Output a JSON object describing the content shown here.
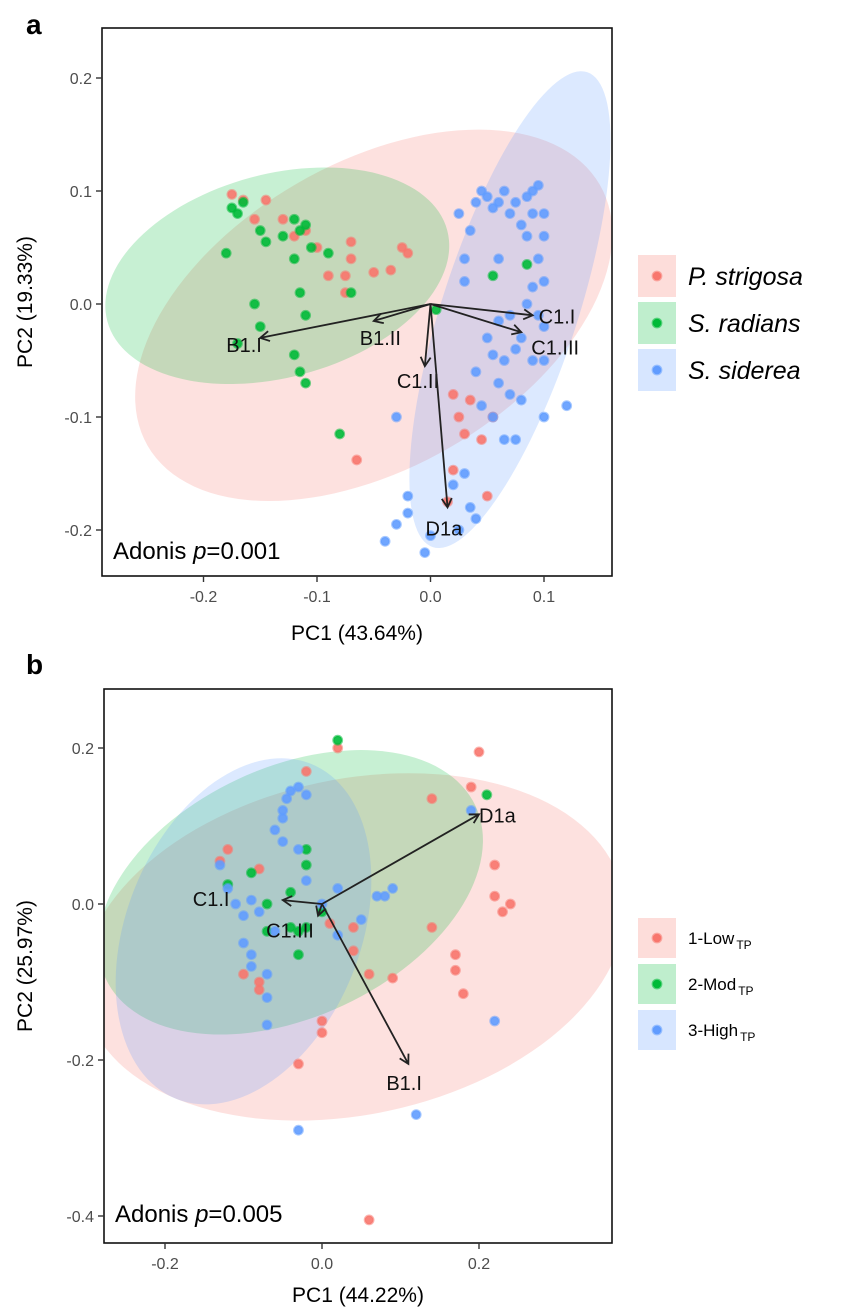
{
  "chart_data": [
    {
      "panel": "a",
      "type": "scatter",
      "xlabel": "PC1 (43.64%)",
      "ylabel": "PC2 (19.33%)",
      "xlim": [
        -0.29,
        0.16
      ],
      "ylim": [
        -0.24,
        0.23
      ],
      "xticks": [
        -0.2,
        -0.1,
        0.0,
        0.1
      ],
      "xtick_labels": [
        "-0.2",
        "-0.1",
        "0.0",
        "0.1"
      ],
      "yticks": [
        -0.2,
        -0.1,
        0.0,
        0.1,
        0.2
      ],
      "ytick_labels": [
        "-0.2",
        "-0.1",
        "0.0",
        "0.1",
        "0.2"
      ],
      "grid": false,
      "legend_position": "right",
      "annotation": {
        "prefix": "Adonis ",
        "italic": "p",
        "suffix": "=0.001"
      },
      "series": [
        {
          "name": "P. strigosa",
          "color": "#F8766D",
          "ellipse": {
            "cx": -0.05,
            "cy": -0.01,
            "rx": 0.23,
            "ry": 0.135,
            "angle": -30
          },
          "x": [
            -0.175,
            -0.165,
            -0.155,
            -0.145,
            -0.13,
            -0.11,
            -0.1,
            -0.07,
            -0.07,
            -0.05,
            -0.035,
            -0.025,
            -0.02,
            0.02,
            0.025,
            0.03,
            0.035,
            0.045,
            0.055,
            0.05,
            -0.065,
            0.02,
            -0.065
          ],
          "y": [
            0.097,
            0.092,
            0.075,
            0.092,
            0.075,
            0.065,
            0.05,
            0.055,
            0.04,
            0.028,
            0.03,
            0.05,
            0.045,
            -0.08,
            -0.1,
            -0.115,
            -0.085,
            -0.12,
            -0.1,
            -0.17,
            0.025,
            -0.147,
            -0.138
          ],
          "point_marks": [
            [
              -0.175,
              0.097
            ],
            [
              -0.165,
              0.092
            ],
            [
              -0.155,
              0.075
            ],
            [
              -0.145,
              0.092
            ],
            [
              -0.13,
              0.075
            ],
            [
              -0.11,
              0.065
            ],
            [
              -0.1,
              0.05
            ],
            [
              -0.07,
              0.055
            ],
            [
              -0.07,
              0.04
            ],
            [
              -0.05,
              0.028
            ],
            [
              -0.035,
              0.03
            ],
            [
              -0.025,
              0.05
            ],
            [
              -0.02,
              0.045
            ],
            [
              -0.09,
              0.025
            ],
            [
              -0.075,
              0.025
            ],
            [
              0.02,
              -0.08
            ],
            [
              0.025,
              -0.1
            ],
            [
              0.03,
              -0.115
            ],
            [
              0.035,
              -0.085
            ],
            [
              0.045,
              -0.12
            ],
            [
              0.055,
              -0.1
            ],
            [
              0.05,
              -0.17
            ],
            [
              0.02,
              -0.147
            ],
            [
              -0.065,
              -0.138
            ],
            [
              0.015,
              -0.175
            ],
            [
              -0.075,
              0.01
            ],
            [
              -0.12,
              0.06
            ]
          ]
        },
        {
          "name": "S. radians",
          "color": "#00BA38",
          "ellipse": {
            "cx": -0.135,
            "cy": 0.025,
            "rx": 0.155,
            "ry": 0.09,
            "angle": -15
          },
          "point_marks": [
            [
              -0.18,
              0.045
            ],
            [
              -0.175,
              0.085
            ],
            [
              -0.17,
              0.08
            ],
            [
              -0.165,
              0.09
            ],
            [
              -0.15,
              0.065
            ],
            [
              -0.145,
              0.055
            ],
            [
              -0.13,
              0.06
            ],
            [
              -0.12,
              0.075
            ],
            [
              -0.115,
              0.065
            ],
            [
              -0.11,
              0.07
            ],
            [
              -0.105,
              0.05
            ],
            [
              -0.09,
              0.045
            ],
            [
              -0.12,
              0.04
            ],
            [
              -0.115,
              0.01
            ],
            [
              -0.11,
              -0.01
            ],
            [
              -0.15,
              -0.02
            ],
            [
              -0.155,
              0.0
            ],
            [
              -0.12,
              -0.045
            ],
            [
              -0.115,
              -0.06
            ],
            [
              -0.11,
              -0.07
            ],
            [
              -0.17,
              -0.035
            ],
            [
              -0.08,
              -0.115
            ],
            [
              -0.07,
              0.01
            ],
            [
              0.005,
              -0.005
            ],
            [
              0.055,
              0.025
            ],
            [
              0.085,
              0.035
            ]
          ]
        },
        {
          "name": "S. siderea",
          "color": "#619CFF",
          "ellipse": {
            "cx": 0.07,
            "cy": -0.005,
            "rx": 0.22,
            "ry": 0.06,
            "angle": -72
          },
          "point_marks": [
            [
              0.025,
              0.08
            ],
            [
              0.03,
              0.04
            ],
            [
              0.04,
              0.09
            ],
            [
              0.045,
              0.1
            ],
            [
              0.05,
              0.095
            ],
            [
              0.055,
              0.085
            ],
            [
              0.06,
              0.09
            ],
            [
              0.065,
              0.1
            ],
            [
              0.07,
              0.08
            ],
            [
              0.075,
              0.09
            ],
            [
              0.08,
              0.07
            ],
            [
              0.085,
              0.095
            ],
            [
              0.09,
              0.1
            ],
            [
              0.095,
              0.105
            ],
            [
              0.1,
              0.08
            ],
            [
              0.09,
              0.08
            ],
            [
              0.085,
              0.06
            ],
            [
              0.1,
              0.06
            ],
            [
              0.095,
              0.04
            ],
            [
              0.1,
              0.02
            ],
            [
              0.09,
              0.015
            ],
            [
              0.085,
              0.0
            ],
            [
              0.095,
              -0.01
            ],
            [
              0.1,
              -0.02
            ],
            [
              0.07,
              -0.01
            ],
            [
              0.06,
              -0.015
            ],
            [
              0.05,
              -0.03
            ],
            [
              0.055,
              -0.045
            ],
            [
              0.065,
              -0.05
            ],
            [
              0.075,
              -0.04
            ],
            [
              0.08,
              -0.03
            ],
            [
              0.09,
              -0.05
            ],
            [
              0.1,
              -0.05
            ],
            [
              0.06,
              -0.07
            ],
            [
              0.07,
              -0.08
            ],
            [
              0.08,
              -0.085
            ],
            [
              0.04,
              -0.06
            ],
            [
              0.045,
              -0.09
            ],
            [
              0.055,
              -0.1
            ],
            [
              0.065,
              -0.12
            ],
            [
              0.075,
              -0.12
            ],
            [
              0.02,
              -0.16
            ],
            [
              0.03,
              -0.15
            ],
            [
              0.035,
              -0.18
            ],
            [
              0.04,
              -0.19
            ],
            [
              0.025,
              -0.2
            ],
            [
              -0.02,
              -0.17
            ],
            [
              -0.02,
              -0.185
            ],
            [
              -0.03,
              -0.195
            ],
            [
              0.0,
              -0.205
            ],
            [
              -0.04,
              -0.21
            ],
            [
              -0.005,
              -0.22
            ],
            [
              0.12,
              -0.09
            ],
            [
              0.1,
              -0.1
            ],
            [
              -0.03,
              -0.1
            ],
            [
              0.03,
              0.02
            ],
            [
              0.06,
              0.04
            ],
            [
              0.035,
              0.065
            ]
          ]
        }
      ],
      "loadings": [
        {
          "label": "B1.I",
          "x": -0.15,
          "y": -0.03
        },
        {
          "label": "B1.II",
          "x": -0.05,
          "y": -0.015
        },
        {
          "label": "C1.I",
          "x": 0.09,
          "y": -0.01
        },
        {
          "label": "C1.III",
          "x": 0.08,
          "y": -0.025
        },
        {
          "label": "C1.II",
          "x": -0.005,
          "y": -0.055
        },
        {
          "label": "D1a",
          "x": 0.015,
          "y": -0.18
        }
      ]
    },
    {
      "panel": "b",
      "type": "scatter",
      "xlabel": "PC1 (44.22%)",
      "ylabel": "PC2 (25.97%)",
      "xlim": [
        -0.28,
        0.37
      ],
      "ylim": [
        -0.43,
        0.27
      ],
      "xticks": [
        -0.2,
        0.0,
        0.2
      ],
      "xtick_labels": [
        "-0.2",
        "0.0",
        "0.2"
      ],
      "yticks": [
        -0.4,
        -0.2,
        0.0,
        0.2
      ],
      "ytick_labels": [
        "-0.4",
        "-0.2",
        "0.0",
        "0.2"
      ],
      "grid": false,
      "legend_position": "right",
      "annotation": {
        "prefix": "Adonis ",
        "italic": "p",
        "suffix": "=0.005"
      },
      "series": [
        {
          "name": "1-Low",
          "sub": "TP",
          "color": "#F8766D",
          "ellipse": {
            "cx": 0.04,
            "cy": -0.055,
            "rx": 0.35,
            "ry": 0.215,
            "angle": -12
          },
          "point_marks": [
            [
              -0.13,
              0.055
            ],
            [
              -0.12,
              0.07
            ],
            [
              -0.08,
              0.045
            ],
            [
              -0.1,
              -0.09
            ],
            [
              -0.08,
              -0.1
            ],
            [
              -0.08,
              -0.11
            ],
            [
              0.0,
              -0.15
            ],
            [
              0.0,
              -0.165
            ],
            [
              -0.03,
              -0.205
            ],
            [
              0.02,
              0.2
            ],
            [
              0.04,
              -0.06
            ],
            [
              0.06,
              -0.09
            ],
            [
              0.04,
              -0.03
            ],
            [
              0.09,
              -0.095
            ],
            [
              0.14,
              0.135
            ],
            [
              0.19,
              0.15
            ],
            [
              0.2,
              0.195
            ],
            [
              0.22,
              0.05
            ],
            [
              0.22,
              0.01
            ],
            [
              0.24,
              0.0
            ],
            [
              0.23,
              -0.01
            ],
            [
              0.17,
              -0.085
            ],
            [
              0.17,
              -0.065
            ],
            [
              0.18,
              -0.115
            ],
            [
              0.14,
              -0.03
            ],
            [
              0.06,
              -0.405
            ],
            [
              -0.02,
              0.17
            ],
            [
              0.01,
              -0.025
            ]
          ]
        },
        {
          "name": "2-Mod",
          "sub": "TP",
          "color": "#00BA38",
          "ellipse": {
            "cx": -0.04,
            "cy": 0.015,
            "rx": 0.26,
            "ry": 0.16,
            "angle": -25
          },
          "point_marks": [
            [
              -0.12,
              0.025
            ],
            [
              -0.09,
              0.04
            ],
            [
              -0.07,
              0.0
            ],
            [
              -0.07,
              -0.035
            ],
            [
              -0.04,
              -0.03
            ],
            [
              -0.03,
              -0.035
            ],
            [
              -0.02,
              0.05
            ],
            [
              -0.02,
              0.07
            ],
            [
              -0.04,
              0.015
            ],
            [
              -0.03,
              -0.065
            ],
            [
              -0.02,
              -0.03
            ],
            [
              0.02,
              0.21
            ],
            [
              0.21,
              0.14
            ],
            [
              0.0,
              -0.01
            ]
          ]
        },
        {
          "name": "3-High",
          "sub": "TP",
          "color": "#619CFF",
          "ellipse": {
            "cx": -0.1,
            "cy": -0.035,
            "rx": 0.23,
            "ry": 0.15,
            "angle": -68
          },
          "point_marks": [
            [
              -0.13,
              0.05
            ],
            [
              -0.12,
              0.02
            ],
            [
              -0.11,
              0.0
            ],
            [
              -0.1,
              -0.015
            ],
            [
              -0.09,
              0.005
            ],
            [
              -0.08,
              -0.01
            ],
            [
              -0.1,
              -0.05
            ],
            [
              -0.09,
              -0.065
            ],
            [
              -0.09,
              -0.08
            ],
            [
              -0.07,
              -0.09
            ],
            [
              -0.07,
              -0.12
            ],
            [
              -0.07,
              -0.155
            ],
            [
              -0.06,
              0.095
            ],
            [
              -0.05,
              0.12
            ],
            [
              -0.045,
              0.135
            ],
            [
              -0.04,
              0.145
            ],
            [
              -0.03,
              0.15
            ],
            [
              -0.02,
              0.14
            ],
            [
              -0.05,
              0.08
            ],
            [
              -0.03,
              0.07
            ],
            [
              -0.02,
              0.03
            ],
            [
              0.0,
              0.0
            ],
            [
              0.02,
              0.02
            ],
            [
              0.05,
              -0.02
            ],
            [
              0.07,
              0.01
            ],
            [
              0.08,
              0.01
            ],
            [
              0.09,
              0.02
            ],
            [
              0.02,
              -0.04
            ],
            [
              0.19,
              0.12
            ],
            [
              0.22,
              -0.15
            ],
            [
              0.12,
              -0.27
            ],
            [
              -0.03,
              -0.29
            ],
            [
              -0.06,
              -0.035
            ],
            [
              -0.05,
              0.11
            ]
          ]
        }
      ],
      "loadings": [
        {
          "label": "D1a",
          "x": 0.2,
          "y": 0.115
        },
        {
          "label": "B1.I",
          "x": 0.11,
          "y": -0.205
        },
        {
          "label": "C1.I",
          "x": -0.05,
          "y": 0.005
        },
        {
          "label": "C1.III",
          "x": -0.005,
          "y": -0.015
        }
      ]
    }
  ]
}
